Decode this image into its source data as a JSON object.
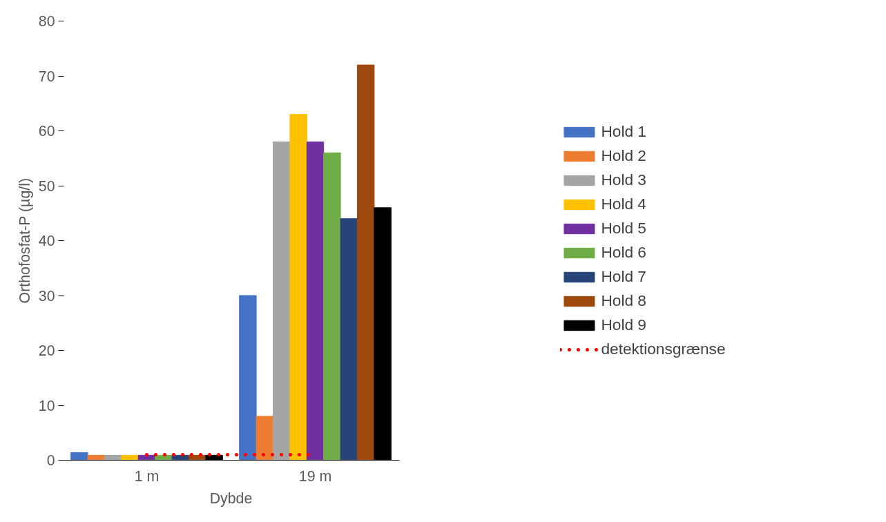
{
  "chart_data": {
    "type": "bar",
    "xlabel": "Dybde",
    "ylabel": "Orthofosfat-P (µg/l)",
    "categories": [
      "1 m",
      "19 m"
    ],
    "series": [
      {
        "name": "Hold 1",
        "color": "#4472c4",
        "values": [
          1.4,
          30
        ]
      },
      {
        "name": "Hold 2",
        "color": "#ed7d31",
        "values": [
          0.9,
          8
        ]
      },
      {
        "name": "Hold 3",
        "color": "#a5a5a5",
        "values": [
          0.9,
          58
        ]
      },
      {
        "name": "Hold 4",
        "color": "#ffc000",
        "values": [
          0.9,
          63
        ]
      },
      {
        "name": "Hold 5",
        "color": "#7030a0",
        "values": [
          0.9,
          58
        ]
      },
      {
        "name": "Hold 6",
        "color": "#70ad47",
        "values": [
          0.9,
          56
        ]
      },
      {
        "name": "Hold 7",
        "color": "#264478",
        "values": [
          0.9,
          44
        ]
      },
      {
        "name": "Hold 8",
        "color": "#9e480e",
        "values": [
          0.9,
          72
        ]
      },
      {
        "name": "Hold 9",
        "color": "#000000",
        "values": [
          0.9,
          46
        ]
      },
      {
        "name": "detektionsgrænse",
        "type": "line",
        "color": "#ff0000",
        "line_style": "dotted",
        "values": [
          1,
          1
        ]
      }
    ],
    "ylim": [
      0,
      80
    ],
    "yticks": [
      0,
      10,
      20,
      30,
      40,
      50,
      60,
      70,
      80
    ],
    "grid": false,
    "legend": "right"
  }
}
